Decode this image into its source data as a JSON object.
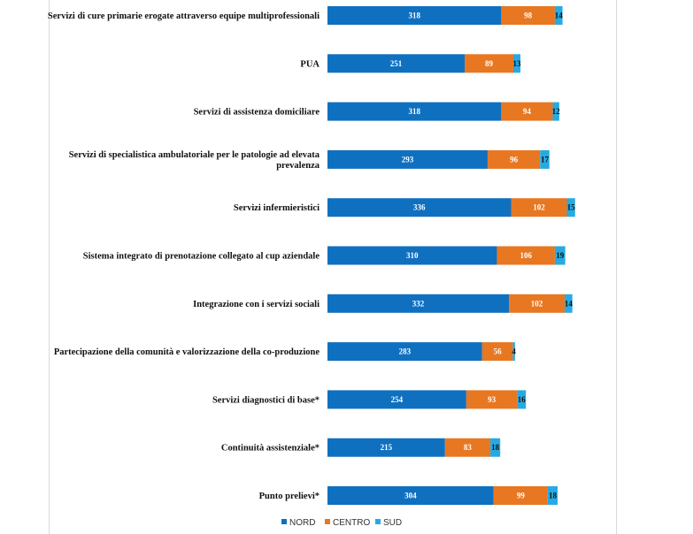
{
  "chart_data": {
    "type": "bar",
    "orientation": "horizontal",
    "stacked": true,
    "categories": [
      [
        "Servizi di cure primarie erogate attraverso equipe multiprofessionali"
      ],
      [
        "PUA"
      ],
      [
        "Servizi di assistenza domiciliare"
      ],
      [
        "Servizi di specialistica ambulatoriale per le patologie ad elevata",
        "prevalenza"
      ],
      [
        "Servizi infermieristici"
      ],
      [
        "Sistema integrato di prenotazione collegato al cup aziendale"
      ],
      [
        "Integrazione con i servizi sociali"
      ],
      [
        "Partecipazione della comunità e valorizzazione della co-produzione"
      ],
      [
        "Servizi diagnostici di base*"
      ],
      [
        "Continuità assistenziale*"
      ],
      [
        "Punto prelievi*"
      ]
    ],
    "series": [
      {
        "name": "NORD",
        "color": "#1070C0",
        "values": [
          318,
          251,
          318,
          293,
          336,
          310,
          332,
          283,
          254,
          215,
          304
        ]
      },
      {
        "name": "CENTRO",
        "color": "#E87722",
        "values": [
          98,
          89,
          94,
          96,
          102,
          106,
          102,
          56,
          93,
          83,
          99
        ]
      },
      {
        "name": "SUD",
        "color": "#27AAE1",
        "values": [
          14,
          13,
          12,
          17,
          15,
          19,
          14,
          4,
          16,
          18,
          18
        ]
      }
    ],
    "data_labels": true,
    "legend_position": "bottom",
    "grid": false,
    "title": "",
    "xlabel": "",
    "ylabel": ""
  }
}
